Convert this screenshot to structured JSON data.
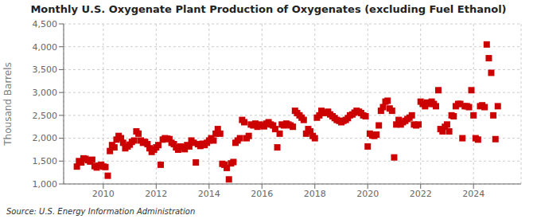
{
  "chart_data": {
    "type": "scatter",
    "title": "Monthly U.S. Oxygenate Plant Production of Oxygenates (excluding Fuel Ethanol)",
    "ylabel": "Thousand Barrels",
    "annotations": [
      "Source: U.S. Energy Information Administration"
    ],
    "color": "#cc0000",
    "marker": "square",
    "grid": true,
    "xlim": [
      2008.5,
      2025.8
    ],
    "xticks": [
      2010,
      2012,
      2014,
      2016,
      2018,
      2020,
      2022,
      2024
    ],
    "ylim": [
      1000,
      4500
    ],
    "yticks": [
      {
        "value": 1000,
        "label": "1,000"
      },
      {
        "value": 1500,
        "label": "1,500"
      },
      {
        "value": 2000,
        "label": "2,000"
      },
      {
        "value": 2500,
        "label": "2,500"
      },
      {
        "value": 3000,
        "label": "3,000"
      },
      {
        "value": 3500,
        "label": "3,500"
      },
      {
        "value": 4000,
        "label": "4,000"
      },
      {
        "value": 4500,
        "label": "4,500"
      }
    ],
    "x": [
      2009.0,
      2009.08,
      2009.17,
      2009.25,
      2009.33,
      2009.42,
      2009.5,
      2009.58,
      2009.67,
      2009.75,
      2009.83,
      2009.92,
      2010.0,
      2010.08,
      2010.17,
      2010.25,
      2010.33,
      2010.42,
      2010.5,
      2010.58,
      2010.67,
      2010.75,
      2010.83,
      2010.92,
      2011.0,
      2011.08,
      2011.17,
      2011.25,
      2011.33,
      2011.42,
      2011.5,
      2011.58,
      2011.67,
      2011.75,
      2011.83,
      2011.92,
      2012.0,
      2012.08,
      2012.17,
      2012.25,
      2012.33,
      2012.42,
      2012.5,
      2012.58,
      2012.67,
      2012.75,
      2012.83,
      2012.92,
      2013.0,
      2013.08,
      2013.17,
      2013.25,
      2013.33,
      2013.42,
      2013.5,
      2013.58,
      2013.67,
      2013.75,
      2013.83,
      2013.92,
      2014.0,
      2014.08,
      2014.17,
      2014.25,
      2014.33,
      2014.42,
      2014.5,
      2014.58,
      2014.67,
      2014.75,
      2014.83,
      2014.92,
      2015.0,
      2015.08,
      2015.17,
      2015.25,
      2015.33,
      2015.42,
      2015.5,
      2015.58,
      2015.67,
      2015.75,
      2015.83,
      2015.92,
      2016.0,
      2016.08,
      2016.17,
      2016.25,
      2016.33,
      2016.42,
      2016.5,
      2016.58,
      2016.67,
      2016.75,
      2016.83,
      2016.92,
      2017.0,
      2017.08,
      2017.17,
      2017.25,
      2017.33,
      2017.42,
      2017.5,
      2017.58,
      2017.67,
      2017.75,
      2017.83,
      2017.92,
      2018.0,
      2018.08,
      2018.17,
      2018.25,
      2018.33,
      2018.42,
      2018.5,
      2018.58,
      2018.67,
      2018.75,
      2018.83,
      2018.92,
      2019.0,
      2019.08,
      2019.17,
      2019.25,
      2019.33,
      2019.42,
      2019.5,
      2019.58,
      2019.67,
      2019.75,
      2019.83,
      2019.92,
      2020.0,
      2020.08,
      2020.17,
      2020.25,
      2020.33,
      2020.42,
      2020.5,
      2020.58,
      2020.67,
      2020.75,
      2020.83,
      2020.92,
      2021.0,
      2021.08,
      2021.17,
      2021.25,
      2021.33,
      2021.42,
      2021.5,
      2021.58,
      2021.67,
      2021.75,
      2021.83,
      2021.92,
      2022.0,
      2022.08,
      2022.17,
      2022.25,
      2022.33,
      2022.42,
      2022.5,
      2022.58,
      2022.67,
      2022.75,
      2022.83,
      2022.92,
      2023.0,
      2023.08,
      2023.17,
      2023.25,
      2023.33,
      2023.42,
      2023.5,
      2023.58,
      2023.67,
      2023.75,
      2023.83,
      2023.92,
      2024.0,
      2024.08,
      2024.17,
      2024.25,
      2024.33,
      2024.42,
      2024.5,
      2024.58,
      2024.67,
      2024.75,
      2024.83,
      2024.92
    ],
    "values": [
      1380,
      1500,
      1470,
      1560,
      1550,
      1520,
      1490,
      1530,
      1390,
      1360,
      1400,
      1420,
      1380,
      1370,
      1180,
      1720,
      1850,
      1800,
      1970,
      2050,
      2000,
      1900,
      1780,
      1820,
      1860,
      1920,
      1950,
      2150,
      2100,
      1950,
      1900,
      1920,
      1870,
      1780,
      1700,
      1750,
      1800,
      1850,
      1420,
      1970,
      2000,
      1990,
      1980,
      1900,
      1870,
      1800,
      1750,
      1820,
      1800,
      1760,
      1850,
      1820,
      1950,
      1900,
      1470,
      1870,
      1830,
      1880,
      1850,
      1900,
      1950,
      2000,
      1950,
      2100,
      2200,
      2100,
      1440,
      1420,
      1350,
      1100,
      1450,
      1480,
      1900,
      1950,
      2000,
      2400,
      2350,
      2000,
      2050,
      2300,
      2280,
      2320,
      2250,
      2300,
      2280,
      2260,
      2320,
      2350,
      2300,
      2280,
      2200,
      1800,
      2100,
      2300,
      2280,
      2320,
      2300,
      2280,
      2250,
      2600,
      2550,
      2500,
      2450,
      2400,
      2100,
      2200,
      2150,
      2050,
      2000,
      2450,
      2500,
      2600,
      2550,
      2560,
      2580,
      2520,
      2480,
      2440,
      2400,
      2380,
      2350,
      2380,
      2400,
      2440,
      2500,
      2520,
      2560,
      2600,
      2580,
      2550,
      2500,
      2480,
      1820,
      2100,
      2060,
      2050,
      2080,
      2280,
      2600,
      2680,
      2800,
      2820,
      2650,
      2600,
      1580,
      2300,
      2400,
      2300,
      2350,
      2380,
      2420,
      2450,
      2500,
      2300,
      2280,
      2300,
      2800,
      2750,
      2700,
      2780,
      2750,
      2800,
      2750,
      2700,
      3050,
      2200,
      2150,
      2250,
      2300,
      2150,
      2500,
      2480,
      2700,
      2750,
      2750,
      2000,
      2700,
      2700,
      2680,
      3050,
      2500,
      2000,
      1970,
      2700,
      2720,
      2680,
      4050,
      3750,
      3430,
      2500,
      1980,
      2700
    ]
  }
}
